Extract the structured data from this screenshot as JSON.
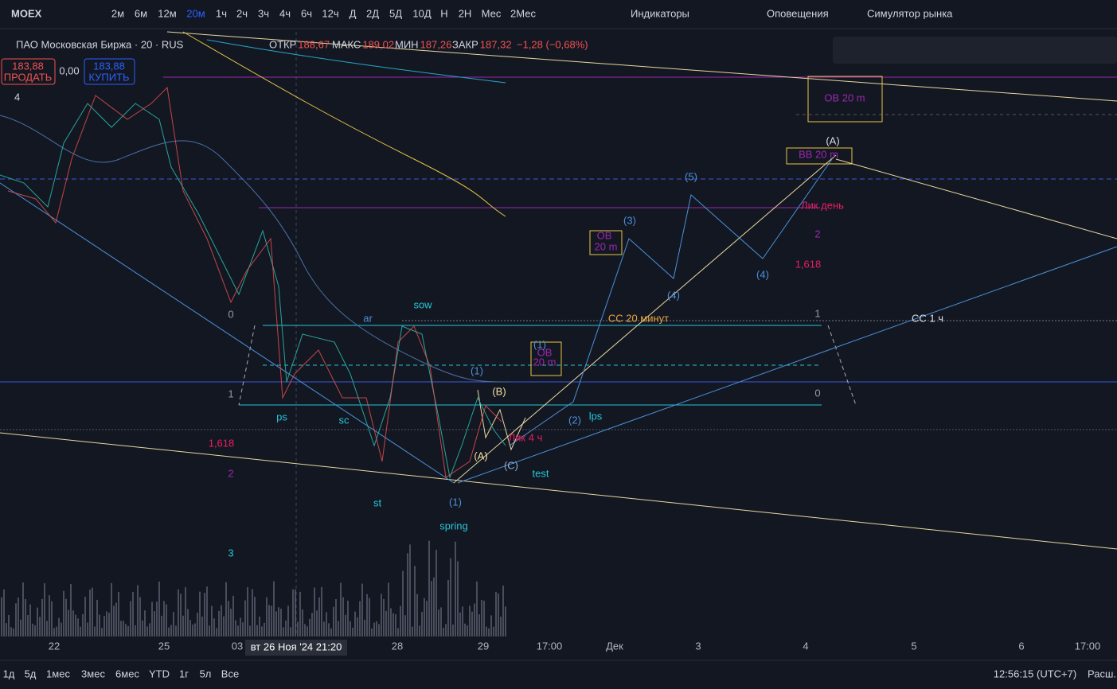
{
  "toolbar": {
    "symbol": "MOEX",
    "intervals": [
      "2м",
      "6м",
      "12м",
      "20м",
      "1ч",
      "2ч",
      "3ч",
      "4ч",
      "6ч",
      "12ч",
      "Д",
      "2Д",
      "5Д",
      "10Д",
      "Н",
      "2Н",
      "Мес",
      "2Мес"
    ],
    "active_interval": "20м",
    "indicators": "Индикаторы",
    "alerts": "Оповещения",
    "replay": "Симулятор рынка"
  },
  "header": {
    "title": "ПАО Московская Биржа · 20 · RUS",
    "open_label": "ОТКР",
    "open": "188,67",
    "high_label": "МАКС",
    "high": "189,02",
    "low_label": "МИН",
    "low": "187,26",
    "close_label": "ЗАКР",
    "close": "187,32",
    "change": "−1,28 (−0,68%)",
    "sell_price": "183,88",
    "sell": "ПРОДАТЬ",
    "spread": "0,00",
    "buy_price": "183,88",
    "buy": "КУПИТЬ",
    "indicators_count": "4"
  },
  "annotations": [
    "ar",
    "sow",
    "ps",
    "sc",
    "st",
    "spring",
    "(1)",
    "(B)",
    "(A)",
    "(C)",
    "test",
    "(1)",
    "(2)",
    "lps",
    "(3)",
    "(4)",
    "(5)",
    "(4)",
    "(A)",
    "OB 20 m",
    "OB",
    "20 m",
    "OB",
    "20 m",
    "ВВ 20 m",
    "Лик день",
    "СС 20 минут",
    "СС 1 ч",
    "Лик 4 ч",
    "(1)",
    "0",
    "1",
    "1,618",
    "2",
    "3",
    "1",
    "0",
    "2",
    "1,618"
  ],
  "x_axis": [
    "22",
    "25",
    "03",
    "28",
    "29",
    "17:00",
    "Дек",
    "3",
    "4",
    "5",
    "6",
    "17:00"
  ],
  "crosshair_label": "вт 26 Ноя '24   21:20",
  "bottom_bar": {
    "ranges": [
      "1д",
      "5д",
      "1мес",
      "3мес",
      "6мес",
      "YTD",
      "1г",
      "5л",
      "Все"
    ],
    "time": "12:56:15 (UTC+7)",
    "scale": "Расш."
  }
}
